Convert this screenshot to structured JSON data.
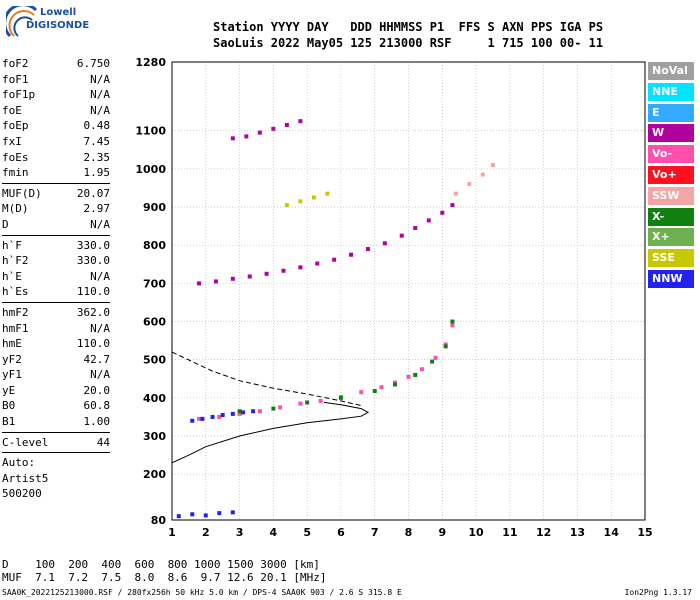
{
  "logo": {
    "line1": "Lowell",
    "line2": "DIGISONDE"
  },
  "header": {
    "line1": "Station YYYY DAY   DDD HHMMSS P1  FFS S AXN PPS IGA PS",
    "line2": "SaoLuis 2022 May05 125 213000 RSF     1 715 100 00- 11"
  },
  "params": [
    [
      {
        "name": "foF2",
        "value": "6.750"
      },
      {
        "name": "foF1",
        "value": "N/A"
      },
      {
        "name": "foF1p",
        "value": "N/A"
      },
      {
        "name": "foE",
        "value": "N/A"
      },
      {
        "name": "foEp",
        "value": "0.48"
      },
      {
        "name": "fxI",
        "value": "7.45"
      },
      {
        "name": "foEs",
        "value": "2.35"
      },
      {
        "name": "fmin",
        "value": "1.95"
      }
    ],
    [
      {
        "name": "MUF(D)",
        "value": "20.07"
      },
      {
        "name": "M(D)",
        "value": "2.97"
      },
      {
        "name": "D",
        "value": "N/A"
      }
    ],
    [
      {
        "name": "h`F",
        "value": "330.0"
      },
      {
        "name": "h`F2",
        "value": "330.0"
      },
      {
        "name": "h`E",
        "value": "N/A"
      },
      {
        "name": "h`Es",
        "value": "110.0"
      }
    ],
    [
      {
        "name": "hmF2",
        "value": "362.0"
      },
      {
        "name": "hmF1",
        "value": "N/A"
      },
      {
        "name": "hmE",
        "value": "110.0"
      },
      {
        "name": "yF2",
        "value": "42.7"
      },
      {
        "name": "yF1",
        "value": "N/A"
      },
      {
        "name": "yE",
        "value": "20.0"
      },
      {
        "name": "B0",
        "value": "60.8"
      },
      {
        "name": "B1",
        "value": "1.00"
      }
    ],
    [
      {
        "name": "C-level",
        "value": "44"
      }
    ]
  ],
  "auto": [
    "Auto:",
    "Artist5",
    "500200"
  ],
  "legend": [
    {
      "label": "NoVal",
      "color": "#a0a0a0"
    },
    {
      "label": "NNE",
      "color": "#00e5ff"
    },
    {
      "label": "E",
      "color": "#33aaff"
    },
    {
      "label": "W",
      "color": "#b0009e"
    },
    {
      "label": "Vo-",
      "color": "#ff4faa"
    },
    {
      "label": "Vo+",
      "color": "#ff1020"
    },
    {
      "label": "SSW",
      "color": "#f5a5a5"
    },
    {
      "label": "X-",
      "color": "#108010"
    },
    {
      "label": "X+",
      "color": "#70b050"
    },
    {
      "label": "SSE",
      "color": "#c8c800"
    },
    {
      "label": "NNW",
      "color": "#2222ee"
    }
  ],
  "distance_table": {
    "row1": "D    100  200  400  600  800 1000 1500 3000 [km]",
    "row2": "MUF  7.1  7.2  7.5  8.0  8.6  9.7 12.6 20.1 [MHz]"
  },
  "footer": "SAA0K_2022125213000.RSF / 280fx256h 50 kHz 5.0 km / DPS-4 SAA0K 903 / 2.6 S 315.8 E",
  "version": "Ion2Png 1.3.17",
  "chart_data": {
    "type": "scatter",
    "title": "",
    "xlabel": "",
    "ylabel": "",
    "xlim": [
      1,
      15
    ],
    "ylim": [
      80,
      1280
    ],
    "x_ticks": [
      1,
      2,
      3,
      4,
      5,
      6,
      7,
      8,
      9,
      10,
      11,
      12,
      13,
      14,
      15
    ],
    "y_ticks": [
      80,
      200,
      300,
      400,
      500,
      600,
      700,
      800,
      900,
      1000,
      1100,
      1280
    ],
    "grid": true,
    "series": [
      {
        "name": "Vo-",
        "color": "#ff4faa",
        "x": [
          1.8,
          2.4,
          3.0,
          3.6,
          4.2,
          4.8,
          5.4,
          6.0,
          6.6,
          7.2,
          7.6,
          8.0,
          8.4,
          8.8,
          9.1,
          9.3
        ],
        "y": [
          345,
          350,
          358,
          365,
          375,
          385,
          392,
          402,
          415,
          428,
          440,
          455,
          475,
          505,
          540,
          590
        ]
      },
      {
        "name": "X-",
        "color": "#108010",
        "x": [
          3.0,
          4.0,
          5.0,
          6.0,
          7.0,
          7.6,
          8.2,
          8.7,
          9.1,
          9.3
        ],
        "y": [
          365,
          372,
          388,
          400,
          418,
          435,
          460,
          495,
          535,
          600
        ]
      },
      {
        "name": "W",
        "color": "#b0009e",
        "x": [
          1.8,
          2.3,
          2.8,
          3.3,
          3.8,
          4.3,
          4.8,
          5.3,
          5.8,
          6.3,
          6.8,
          7.3,
          7.8,
          8.2,
          8.6,
          9.0,
          9.3
        ],
        "y": [
          700,
          705,
          712,
          718,
          725,
          733,
          742,
          752,
          762,
          775,
          790,
          805,
          825,
          845,
          865,
          885,
          905
        ]
      },
      {
        "name": "SSW",
        "color": "#f5a5a5",
        "x": [
          9.4,
          9.8,
          10.2,
          10.5
        ],
        "y": [
          935,
          960,
          985,
          1010
        ]
      },
      {
        "name": "NNW",
        "color": "#2222ee",
        "x": [
          1.6,
          1.9,
          2.2,
          2.5,
          2.8,
          3.1,
          3.4
        ],
        "y": [
          340,
          345,
          350,
          355,
          358,
          362,
          365
        ]
      },
      {
        "name": "NNW low",
        "color": "#2222ee",
        "x": [
          1.2,
          1.6,
          2.0,
          2.4,
          2.8
        ],
        "y": [
          90,
          95,
          92,
          98,
          100
        ]
      },
      {
        "name": "W upper",
        "color": "#b0009e",
        "x": [
          2.8,
          3.2,
          3.6,
          4.0,
          4.4,
          4.8
        ],
        "y": [
          1080,
          1085,
          1095,
          1105,
          1115,
          1125
        ]
      },
      {
        "name": "SSE",
        "color": "#c8c800",
        "x": [
          4.4,
          4.8,
          5.2,
          5.6
        ],
        "y": [
          905,
          915,
          925,
          935
        ]
      }
    ],
    "profile_solid": {
      "x": [
        1.0,
        1.5,
        2.0,
        3.0,
        4.0,
        5.0,
        6.0,
        6.6,
        6.8,
        6.6,
        6.0,
        5.5
      ],
      "y": [
        230,
        250,
        272,
        300,
        320,
        335,
        345,
        352,
        362,
        372,
        382,
        388
      ]
    },
    "profile_dashed": {
      "x": [
        1.0,
        1.6,
        2.2,
        3.0,
        4.0,
        5.0,
        6.0,
        6.6
      ],
      "y": [
        520,
        495,
        470,
        445,
        425,
        410,
        392,
        380
      ]
    }
  }
}
